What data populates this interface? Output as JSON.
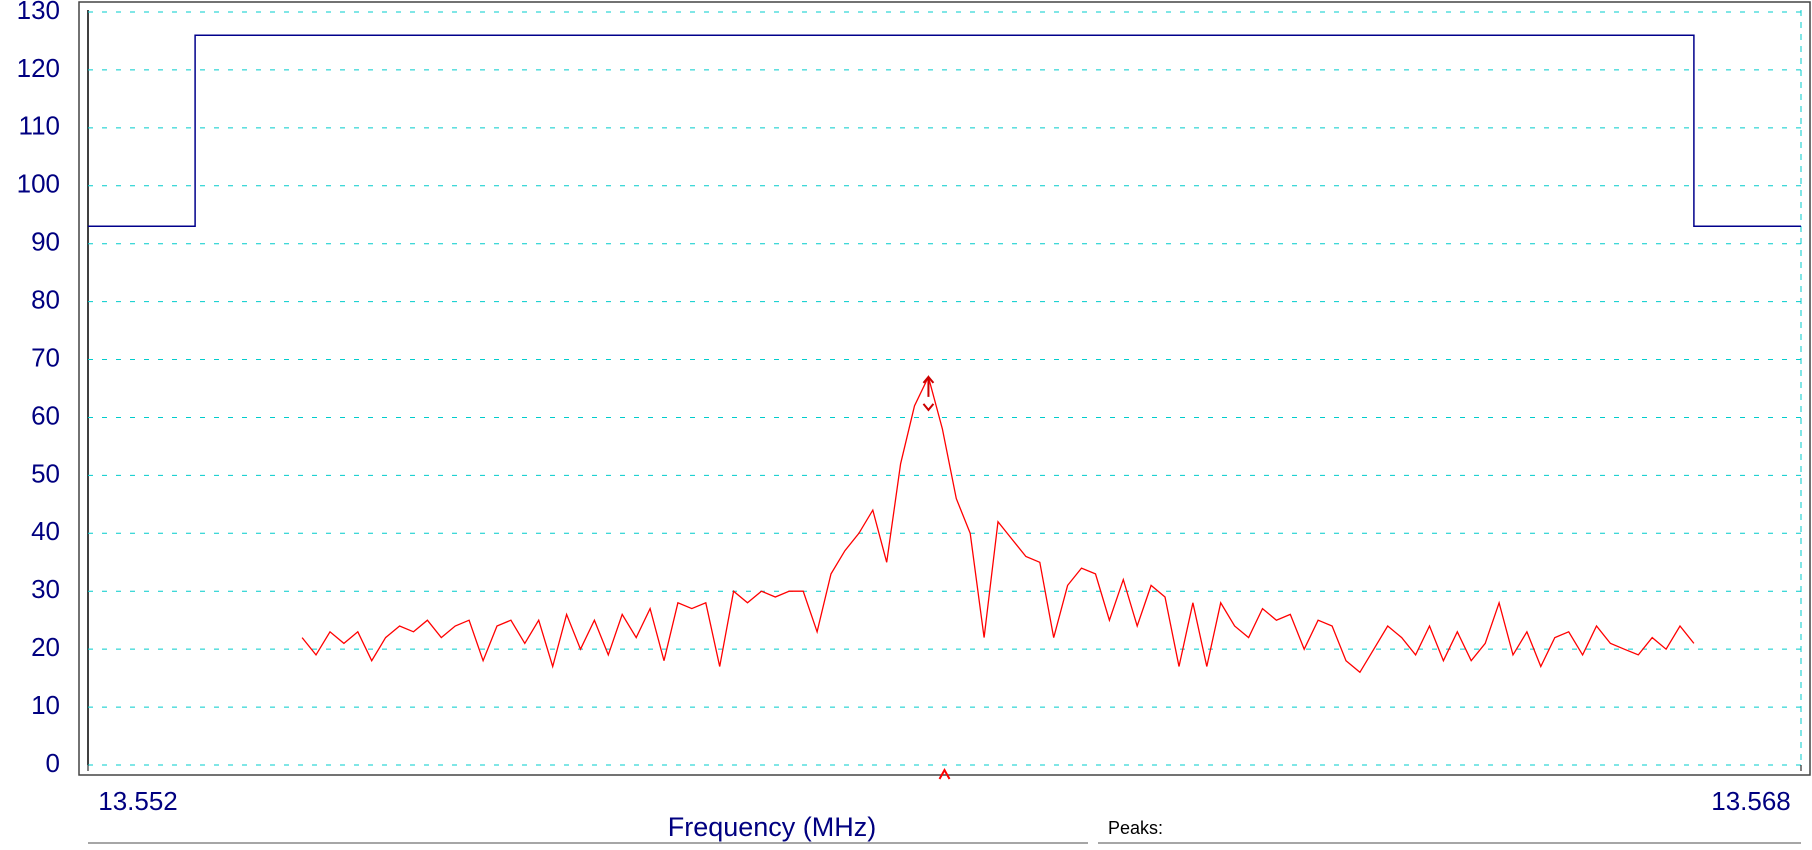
{
  "chart_data": {
    "type": "line",
    "xlabel": "Frequency (MHz)",
    "peaks_label": "Peaks:",
    "xlim": [
      13.552,
      13.568
    ],
    "xticks": [
      13.552,
      13.568
    ],
    "ylim": [
      0,
      130
    ],
    "yticks": [
      0,
      10,
      20,
      30,
      40,
      50,
      60,
      70,
      80,
      90,
      100,
      110,
      120,
      130
    ],
    "grid": true,
    "limit": {
      "color": "#00008b",
      "x": [
        13.552,
        13.553,
        13.553,
        13.567,
        13.567,
        13.568
      ],
      "values": [
        93,
        93,
        126,
        126,
        93,
        93
      ]
    },
    "center_marker": 13.56,
    "peak_marker": {
      "x": 13.55985,
      "value": 67
    },
    "series": [
      {
        "color": "#ff0000",
        "x": [
          13.554,
          13.55413,
          13.55426,
          13.55439,
          13.55452,
          13.55465,
          13.55478,
          13.55491,
          13.55504,
          13.55517,
          13.5553,
          13.55543,
          13.55556,
          13.55569,
          13.55582,
          13.55595,
          13.55608,
          13.55621,
          13.55634,
          13.55647,
          13.5566,
          13.55673,
          13.55686,
          13.55699,
          13.55712,
          13.55725,
          13.55738,
          13.55751,
          13.55764,
          13.55777,
          13.5579,
          13.55803,
          13.55816,
          13.55829,
          13.55842,
          13.55855,
          13.55868,
          13.55881,
          13.55894,
          13.55907,
          13.5592,
          13.55933,
          13.55946,
          13.55959,
          13.55972,
          13.55985,
          13.55998,
          13.56011,
          13.56024,
          13.56037,
          13.5605,
          13.56063,
          13.56076,
          13.56089,
          13.56102,
          13.56115,
          13.56128,
          13.56141,
          13.56154,
          13.56167,
          13.5618,
          13.56193,
          13.56206,
          13.56219,
          13.56232,
          13.56245,
          13.56258,
          13.56271,
          13.56284,
          13.56297,
          13.5631,
          13.56323,
          13.56336,
          13.56349,
          13.56362,
          13.56375,
          13.56388,
          13.56401,
          13.56414,
          13.56427,
          13.5644,
          13.56453,
          13.56466,
          13.56479,
          13.56492,
          13.56505,
          13.56518,
          13.56531,
          13.56544,
          13.56557,
          13.5657,
          13.56583,
          13.56596,
          13.56609,
          13.56622,
          13.56635,
          13.56648,
          13.56661,
          13.56674,
          13.56687,
          13.567
        ],
        "values": [
          22,
          19,
          23,
          21,
          23,
          18,
          22,
          24,
          23,
          25,
          22,
          24,
          25,
          18,
          24,
          25,
          21,
          25,
          17,
          26,
          20,
          25,
          19,
          26,
          22,
          27,
          18,
          28,
          27,
          28,
          17,
          30,
          28,
          30,
          29,
          30,
          30,
          23,
          33,
          37,
          40,
          44,
          35,
          52,
          62,
          67,
          58,
          46,
          40,
          22,
          42,
          39,
          36,
          35,
          22,
          31,
          34,
          33,
          25,
          32,
          24,
          31,
          29,
          17,
          28,
          17,
          28,
          24,
          22,
          27,
          25,
          26,
          20,
          25,
          24,
          18,
          16,
          20,
          24,
          22,
          19,
          24,
          18,
          23,
          18,
          21,
          28,
          19,
          23,
          17,
          22,
          23,
          19,
          24,
          21,
          20,
          19,
          22,
          20,
          24,
          21
        ]
      }
    ]
  }
}
